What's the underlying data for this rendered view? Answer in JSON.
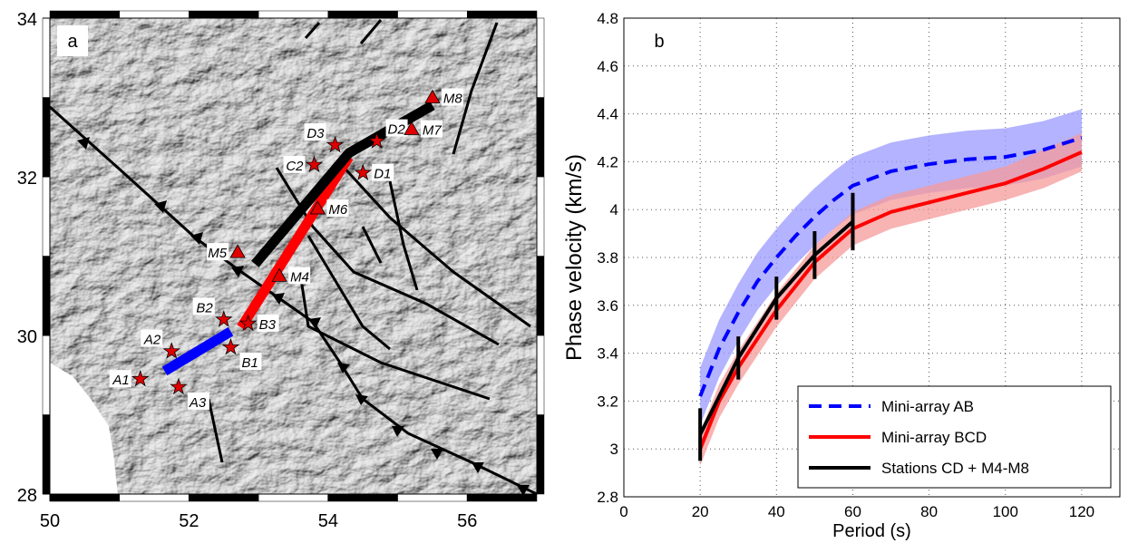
{
  "chart_data": [
    {
      "type": "map",
      "panel_label": "a",
      "xlim": [
        50,
        57
      ],
      "ylim": [
        28,
        34
      ],
      "xticks": [
        50,
        52,
        54,
        56
      ],
      "yticks": [
        28,
        30,
        32,
        34
      ],
      "stations": [
        {
          "label": "A1",
          "marker": "star",
          "x": 51.3,
          "y": 29.45
        },
        {
          "label": "A2",
          "marker": "star",
          "x": 51.75,
          "y": 29.8
        },
        {
          "label": "A3",
          "marker": "star",
          "x": 51.85,
          "y": 29.35
        },
        {
          "label": "B1",
          "marker": "star",
          "x": 52.6,
          "y": 29.85
        },
        {
          "label": "B2",
          "marker": "star",
          "x": 52.5,
          "y": 30.2
        },
        {
          "label": "B3",
          "marker": "star",
          "x": 52.85,
          "y": 30.15
        },
        {
          "label": "C2",
          "marker": "star",
          "x": 53.8,
          "y": 32.15
        },
        {
          "label": "D3",
          "marker": "star",
          "x": 54.1,
          "y": 32.4
        },
        {
          "label": "D2",
          "marker": "star",
          "x": 54.7,
          "y": 32.45
        },
        {
          "label": "D1",
          "marker": "star",
          "x": 54.5,
          "y": 32.05
        },
        {
          "label": "M4",
          "marker": "triangle",
          "x": 53.3,
          "y": 30.75
        },
        {
          "label": "M5",
          "marker": "triangle",
          "x": 52.7,
          "y": 31.05
        },
        {
          "label": "M6",
          "marker": "triangle",
          "x": 53.85,
          "y": 31.6
        },
        {
          "label": "M7",
          "marker": "triangle",
          "x": 55.2,
          "y": 32.6
        },
        {
          "label": "M8",
          "marker": "triangle",
          "x": 55.5,
          "y": 33.0
        }
      ],
      "profiles": [
        {
          "color": "#0000ff",
          "x": [
            51.65,
            52.6
          ],
          "y": [
            29.55,
            30.05
          ]
        },
        {
          "color": "#ff0000",
          "x": [
            52.75,
            54.3
          ],
          "y": [
            30.1,
            32.25
          ]
        },
        {
          "color": "#000000",
          "x": [
            52.95,
            54.3,
            55.5
          ],
          "y": [
            30.9,
            32.3,
            32.9
          ]
        }
      ]
    },
    {
      "type": "line",
      "panel_label": "b",
      "x_label": "Period (s)",
      "y_label": "Phase velocity (km/s)",
      "xlim": [
        0,
        130
      ],
      "ylim": [
        2.8,
        4.8
      ],
      "xticks": [
        0,
        20,
        40,
        60,
        80,
        100,
        120
      ],
      "yticks": [
        2.8,
        3,
        3.2,
        3.4,
        3.6,
        3.8,
        4,
        4.2,
        4.4,
        4.6,
        4.8
      ],
      "grid": true,
      "legend": "lower right",
      "series": [
        {
          "name": "Mini-array AB",
          "color": "#0000ff",
          "band_color": "#9999ff",
          "dash": true,
          "x": [
            20,
            25,
            30,
            35,
            40,
            45,
            50,
            55,
            60,
            70,
            80,
            90,
            100,
            110,
            120
          ],
          "values": [
            3.22,
            3.42,
            3.57,
            3.7,
            3.8,
            3.89,
            3.97,
            4.04,
            4.1,
            4.16,
            4.19,
            4.21,
            4.22,
            4.25,
            4.3
          ],
          "errors": [
            0.12,
            0.12,
            0.12,
            0.12,
            0.12,
            0.12,
            0.12,
            0.12,
            0.12,
            0.12,
            0.12,
            0.12,
            0.12,
            0.12,
            0.12
          ]
        },
        {
          "name": "Mini-array BCD",
          "color": "#ff0000",
          "band_color": "#f59a9a",
          "dash": false,
          "x": [
            20,
            25,
            30,
            40,
            50,
            60,
            70,
            80,
            90,
            100,
            110,
            120
          ],
          "values": [
            3.0,
            3.2,
            3.34,
            3.58,
            3.78,
            3.92,
            3.99,
            4.03,
            4.07,
            4.11,
            4.17,
            4.24
          ],
          "errors": [
            0.07,
            0.07,
            0.07,
            0.07,
            0.07,
            0.07,
            0.07,
            0.07,
            0.07,
            0.07,
            0.08,
            0.08
          ]
        },
        {
          "name": "Stations CD + M4-M8",
          "color": "#000000",
          "dash": false,
          "error_bars": true,
          "x": [
            20,
            30,
            40,
            50,
            60
          ],
          "values": [
            3.06,
            3.38,
            3.63,
            3.81,
            3.95
          ],
          "errors": [
            0.11,
            0.09,
            0.09,
            0.1,
            0.12
          ]
        }
      ]
    }
  ]
}
